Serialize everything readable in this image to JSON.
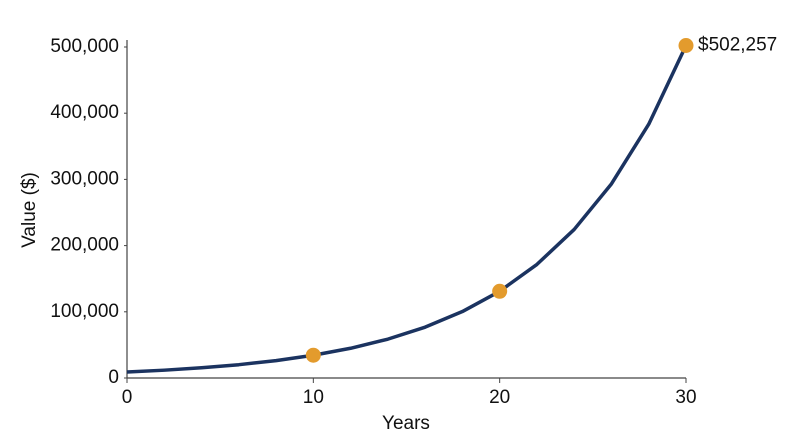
{
  "chart_data": {
    "type": "line",
    "x": [
      0,
      2,
      4,
      6,
      8,
      10,
      12,
      14,
      16,
      18,
      20,
      22,
      24,
      26,
      28,
      30
    ],
    "values": [
      9000,
      11800,
      15400,
      20100,
      26300,
      34400,
      44900,
      58700,
      76800,
      100400,
      131000,
      171600,
      224400,
      293300,
      383400,
      502257
    ],
    "color": "#1b3360",
    "points": {
      "x": [
        10,
        20,
        30
      ],
      "values": [
        34400,
        131000,
        502257
      ],
      "value_labels": [
        null,
        null,
        "$502,257"
      ],
      "color": "#e39b2d"
    },
    "xlabel": "Years",
    "ylabel": "Value ($)",
    "xlim": [
      0,
      30
    ],
    "ylim": [
      0,
      500000
    ],
    "xticks": [
      0,
      10,
      20,
      30
    ],
    "yticks": [
      0,
      {
        "value": 100000,
        "label": "100,000"
      },
      {
        "value": 200000,
        "label": "200,000"
      },
      {
        "value": 300000,
        "label": "300,000"
      },
      {
        "value": 400000,
        "label": "400,000"
      },
      {
        "value": 500000,
        "label": "500,000"
      }
    ],
    "grid": false
  }
}
